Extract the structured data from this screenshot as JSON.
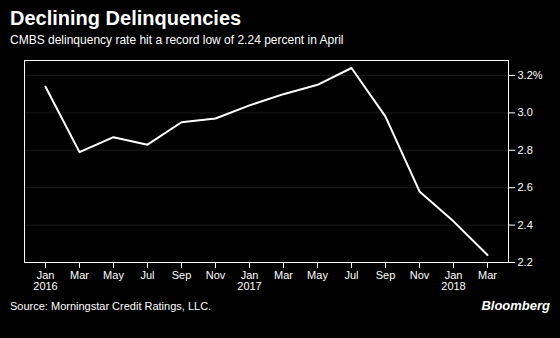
{
  "chart_data": {
    "type": "line",
    "title": "Declining Delinquencies",
    "subtitle": "CMBS delinquency rate hit a record low of 2.24 percent in April",
    "source": "Source: Morningstar Credit Ratings, LLC.",
    "annotations": [
      "Bloomberg"
    ],
    "categories": [
      "Jan\n2016",
      "Mar",
      "May",
      "Jul",
      "Sep",
      "Nov",
      "Jan\n2017",
      "Mar",
      "May",
      "Jul",
      "Sep",
      "Nov",
      "Jan\n2018",
      "Mar"
    ],
    "values": [
      3.14,
      2.79,
      2.87,
      2.83,
      2.95,
      2.97,
      3.04,
      3.1,
      3.15,
      3.24,
      2.98,
      2.58,
      2.42,
      2.24
    ],
    "color": "#ffffff",
    "ylim": [
      2.2,
      3.28
    ],
    "yticks": [
      2.2,
      2.4,
      2.6,
      2.8,
      {
        "value": 3.0,
        "label": "3.0"
      },
      {
        "value": 3.2,
        "label": "3.2%"
      }
    ],
    "grid": true
  }
}
